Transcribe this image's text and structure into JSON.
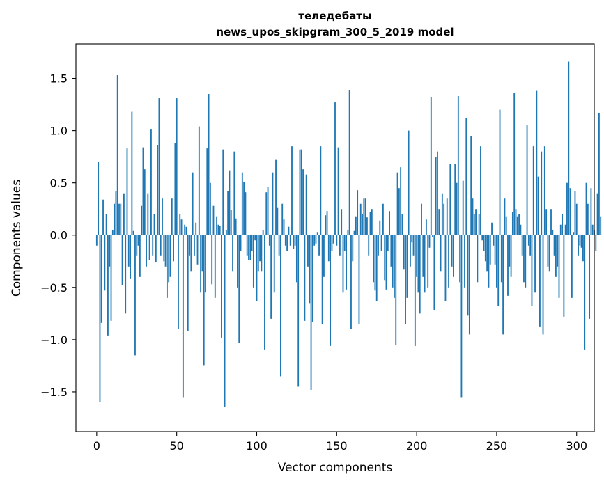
{
  "chart_data": {
    "type": "bar",
    "title_line1": "теледебаты",
    "title_line2": "news_upos_skipgram_300_5_2019 model",
    "xlabel": "Vector components",
    "ylabel": "Components values",
    "xlim": [
      -13,
      311
    ],
    "ylim": [
      -1.88,
      1.83
    ],
    "x_ticks": [
      {
        "value": 0,
        "label": "0"
      },
      {
        "value": 50,
        "label": "50"
      },
      {
        "value": 100,
        "label": "100"
      },
      {
        "value": 150,
        "label": "150"
      },
      {
        "value": 200,
        "label": "200"
      },
      {
        "value": 250,
        "label": "250"
      },
      {
        "value": 300,
        "label": "300"
      }
    ],
    "y_ticks": [
      {
        "value": 1.5,
        "label": "1.5"
      },
      {
        "value": 1.0,
        "label": "1.0"
      },
      {
        "value": 0.5,
        "label": "0.5"
      },
      {
        "value": 0.0,
        "label": "0.0"
      },
      {
        "value": -0.5,
        "label": "−0.5"
      },
      {
        "value": -1.0,
        "label": "−1.0"
      },
      {
        "value": -1.5,
        "label": "−1.5"
      }
    ],
    "bar_color": "#1f77b4",
    "grid": false,
    "values": [
      -0.1,
      0.7,
      -1.6,
      -0.84,
      0.34,
      -0.53,
      0.2,
      -0.96,
      -0.3,
      -0.82,
      0.05,
      0.3,
      0.42,
      1.53,
      0.3,
      0.3,
      -0.48,
      0.4,
      -0.75,
      0.83,
      -0.3,
      -0.42,
      1.18,
      0.04,
      -1.15,
      -0.2,
      -0.1,
      -0.4,
      0.28,
      0.84,
      0.63,
      -0.3,
      0.4,
      -0.24,
      1.01,
      -0.2,
      0.2,
      -0.26,
      0.86,
      1.31,
      -0.2,
      0.35,
      -0.25,
      -0.3,
      -0.6,
      -0.45,
      -0.4,
      0.35,
      -0.25,
      0.88,
      1.31,
      -0.9,
      0.2,
      0.15,
      -1.55,
      0.1,
      0.08,
      -0.92,
      -0.2,
      -0.35,
      0.6,
      -0.2,
      0.12,
      -0.28,
      1.04,
      -0.55,
      -0.35,
      -1.25,
      -0.55,
      0.83,
      1.35,
      0.5,
      -0.47,
      0.28,
      -0.6,
      0.18,
      0.1,
      0.09,
      -0.98,
      0.82,
      -1.64,
      0.05,
      0.42,
      0.62,
      0.24,
      -0.35,
      0.8,
      0.16,
      -0.5,
      -1.03,
      -0.15,
      0.6,
      0.51,
      0.41,
      -0.2,
      -0.24,
      -0.24,
      -0.15,
      -0.5,
      -0.05,
      -0.63,
      -0.35,
      -0.25,
      -0.35,
      0.05,
      -1.1,
      0.41,
      0.46,
      -0.1,
      -0.8,
      0.6,
      -0.55,
      0.72,
      0.26,
      -0.2,
      -1.35,
      0.3,
      0.15,
      -0.1,
      -0.15,
      0.08,
      -0.1,
      0.85,
      -0.13,
      -0.1,
      -0.45,
      -1.45,
      0.82,
      0.82,
      0.63,
      -0.82,
      0.58,
      -0.3,
      -0.65,
      -1.48,
      -0.83,
      -0.1,
      -0.08,
      0.03,
      -0.2,
      0.85,
      -0.85,
      -0.4,
      0.19,
      0.23,
      -0.25,
      -1.06,
      -0.15,
      -0.08,
      1.27,
      -0.1,
      0.84,
      -0.2,
      0.25,
      -0.55,
      -0.15,
      -0.52,
      0.05,
      1.39,
      -0.9,
      -0.25,
      0.04,
      0.18,
      0.43,
      -0.85,
      0.3,
      0.2,
      0.35,
      0.35,
      0.17,
      -0.2,
      0.22,
      0.25,
      -0.45,
      -0.53,
      -0.63,
      -0.2,
      0.14,
      -0.15,
      0.3,
      -0.43,
      -0.52,
      -0.15,
      0.23,
      -0.3,
      -0.5,
      -0.6,
      -1.05,
      0.6,
      0.45,
      0.65,
      0.2,
      -0.33,
      -0.85,
      -0.6,
      1.0,
      -0.3,
      -0.07,
      -0.2,
      -1.06,
      -0.4,
      -0.55,
      -0.75,
      0.3,
      -0.4,
      -0.55,
      0.15,
      -0.5,
      -0.12,
      1.32,
      -0.02,
      -0.72,
      0.75,
      0.8,
      0.25,
      -0.35,
      0.4,
      0.3,
      -0.63,
      0.35,
      -0.5,
      0.68,
      -0.3,
      -0.4,
      0.68,
      0.5,
      1.33,
      -0.45,
      -1.55,
      0.52,
      -0.5,
      1.12,
      -0.77,
      -0.95,
      0.95,
      0.35,
      0.2,
      0.25,
      -0.45,
      0.2,
      0.85,
      -0.05,
      -0.15,
      -0.25,
      -0.35,
      -0.5,
      -0.28,
      0.12,
      -0.1,
      -0.28,
      -0.5,
      -0.68,
      1.2,
      -0.45,
      -0.95,
      0.35,
      0.18,
      -0.58,
      -0.3,
      -0.4,
      0.22,
      1.36,
      0.25,
      0.18,
      0.2,
      0.1,
      -0.2,
      -0.45,
      -0.5,
      1.05,
      -0.1,
      -0.2,
      -0.68,
      0.85,
      -0.55,
      1.38,
      0.56,
      -0.88,
      0.8,
      -0.95,
      0.85,
      0.25,
      -0.3,
      -0.35,
      0.25,
      0.05,
      -0.2,
      -0.4,
      -0.3,
      -0.6,
      0.1,
      0.2,
      -0.78,
      0.1,
      0.5,
      1.66,
      0.45,
      -0.6,
      0.03,
      0.42,
      0.3,
      -0.2,
      -0.1,
      -0.12,
      -0.25,
      -1.1,
      0.5,
      0.3,
      -0.8,
      0.45,
      0.1,
      0.05,
      -0.15,
      0.4,
      1.17,
      0.18
    ]
  }
}
